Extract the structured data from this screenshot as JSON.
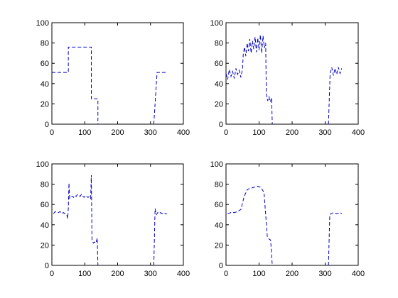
{
  "figure": {
    "background": "#ffffff"
  },
  "chart_data": [
    {
      "type": "line",
      "title": "",
      "xlabel": "",
      "ylabel": "",
      "xlim": [
        0,
        400
      ],
      "ylim": [
        0,
        100
      ],
      "xticks": [
        0,
        100,
        200,
        300,
        400
      ],
      "yticks": [
        0,
        20,
        40,
        60,
        80,
        100
      ],
      "grid": false,
      "series": [
        {
          "color": "#0000cc",
          "segments": [
            [
              [
                0,
                51
              ],
              [
                50,
                51
              ],
              [
                50,
                76
              ],
              [
                120,
                76
              ],
              [
                120,
                25
              ],
              [
                140,
                25
              ],
              [
                140,
                0
              ]
            ],
            [
              [
                310,
                0
              ],
              [
                320,
                51
              ],
              [
                350,
                51
              ]
            ]
          ]
        }
      ]
    },
    {
      "type": "line",
      "title": "",
      "xlabel": "",
      "ylabel": "",
      "xlim": [
        0,
        400
      ],
      "ylim": [
        0,
        100
      ],
      "xticks": [
        0,
        100,
        200,
        300,
        400
      ],
      "yticks": [
        0,
        20,
        40,
        60,
        80,
        100
      ],
      "grid": false,
      "series": [
        {
          "color": "#0000cc",
          "segments": [
            [
              [
                0,
                50
              ],
              [
                5,
                44
              ],
              [
                10,
                54
              ],
              [
                15,
                47
              ],
              [
                20,
                52
              ],
              [
                25,
                45
              ],
              [
                30,
                55
              ],
              [
                35,
                49
              ],
              [
                40,
                53
              ],
              [
                45,
                46
              ],
              [
                50,
                55
              ],
              [
                52,
                68
              ],
              [
                56,
                76
              ],
              [
                60,
                67
              ],
              [
                64,
                80
              ],
              [
                68,
                72
              ],
              [
                72,
                84
              ],
              [
                76,
                70
              ],
              [
                80,
                82
              ],
              [
                84,
                74
              ],
              [
                88,
                86
              ],
              [
                92,
                71
              ],
              [
                96,
                85
              ],
              [
                100,
                73
              ],
              [
                104,
                88
              ],
              [
                108,
                70
              ],
              [
                112,
                87
              ],
              [
                116,
                75
              ],
              [
                120,
                80
              ],
              [
                122,
                30
              ],
              [
                126,
                23
              ],
              [
                130,
                27
              ],
              [
                134,
                22
              ],
              [
                138,
                26
              ],
              [
                140,
                0
              ]
            ],
            [
              [
                310,
                0
              ],
              [
                315,
                50
              ],
              [
                320,
                56
              ],
              [
                325,
                48
              ],
              [
                330,
                55
              ],
              [
                335,
                49
              ],
              [
                340,
                56
              ],
              [
                345,
                50
              ],
              [
                350,
                55
              ]
            ]
          ]
        }
      ]
    },
    {
      "type": "line",
      "title": "",
      "xlabel": "",
      "ylabel": "",
      "xlim": [
        0,
        400
      ],
      "ylim": [
        0,
        100
      ],
      "xticks": [
        0,
        100,
        200,
        300,
        400
      ],
      "yticks": [
        0,
        20,
        40,
        60,
        80,
        100
      ],
      "grid": false,
      "series": [
        {
          "color": "#0000cc",
          "segments": [
            [
              [
                5,
                51
              ],
              [
                10,
                53
              ],
              [
                15,
                52
              ],
              [
                20,
                52
              ],
              [
                25,
                53
              ],
              [
                30,
                51
              ],
              [
                35,
                52
              ],
              [
                40,
                51
              ],
              [
                45,
                50
              ],
              [
                48,
                46
              ],
              [
                50,
                56
              ],
              [
                52,
                81
              ],
              [
                54,
                66
              ],
              [
                58,
                67
              ],
              [
                62,
                68
              ],
              [
                66,
                67
              ],
              [
                70,
                69
              ],
              [
                74,
                68
              ],
              [
                78,
                70
              ],
              [
                82,
                69
              ],
              [
                86,
                68
              ],
              [
                90,
                70
              ],
              [
                94,
                68
              ],
              [
                98,
                67
              ],
              [
                102,
                69
              ],
              [
                106,
                68
              ],
              [
                110,
                67
              ],
              [
                114,
                68
              ],
              [
                118,
                66
              ],
              [
                120,
                89
              ],
              [
                122,
                25
              ],
              [
                126,
                22
              ],
              [
                130,
                23
              ],
              [
                134,
                22
              ],
              [
                138,
                27
              ],
              [
                140,
                0
              ]
            ],
            [
              [
                310,
                0
              ],
              [
                314,
                56
              ],
              [
                318,
                50
              ],
              [
                322,
                52
              ],
              [
                326,
                51
              ],
              [
                330,
                52
              ],
              [
                335,
                51
              ],
              [
                340,
                52
              ],
              [
                345,
                51
              ],
              [
                350,
                51
              ]
            ]
          ]
        }
      ]
    },
    {
      "type": "line",
      "title": "",
      "xlabel": "",
      "ylabel": "",
      "xlim": [
        0,
        400
      ],
      "ylim": [
        0,
        100
      ],
      "xticks": [
        0,
        100,
        200,
        300,
        400
      ],
      "yticks": [
        0,
        20,
        40,
        60,
        80,
        100
      ],
      "grid": false,
      "series": [
        {
          "color": "#0000cc",
          "segments": [
            [
              [
                5,
                51
              ],
              [
                15,
                52
              ],
              [
                25,
                52
              ],
              [
                35,
                53
              ],
              [
                45,
                55
              ],
              [
                55,
                68
              ],
              [
                65,
                75
              ],
              [
                75,
                76
              ],
              [
                85,
                77
              ],
              [
                95,
                78
              ],
              [
                105,
                77
              ],
              [
                115,
                72
              ],
              [
                120,
                50
              ],
              [
                125,
                28
              ],
              [
                130,
                26
              ],
              [
                135,
                25
              ],
              [
                140,
                0
              ]
            ],
            [
              [
                310,
                0
              ],
              [
                314,
                50
              ],
              [
                318,
                51
              ],
              [
                325,
                52
              ],
              [
                335,
                51
              ],
              [
                345,
                52
              ],
              [
                350,
                51
              ]
            ]
          ]
        }
      ]
    }
  ]
}
